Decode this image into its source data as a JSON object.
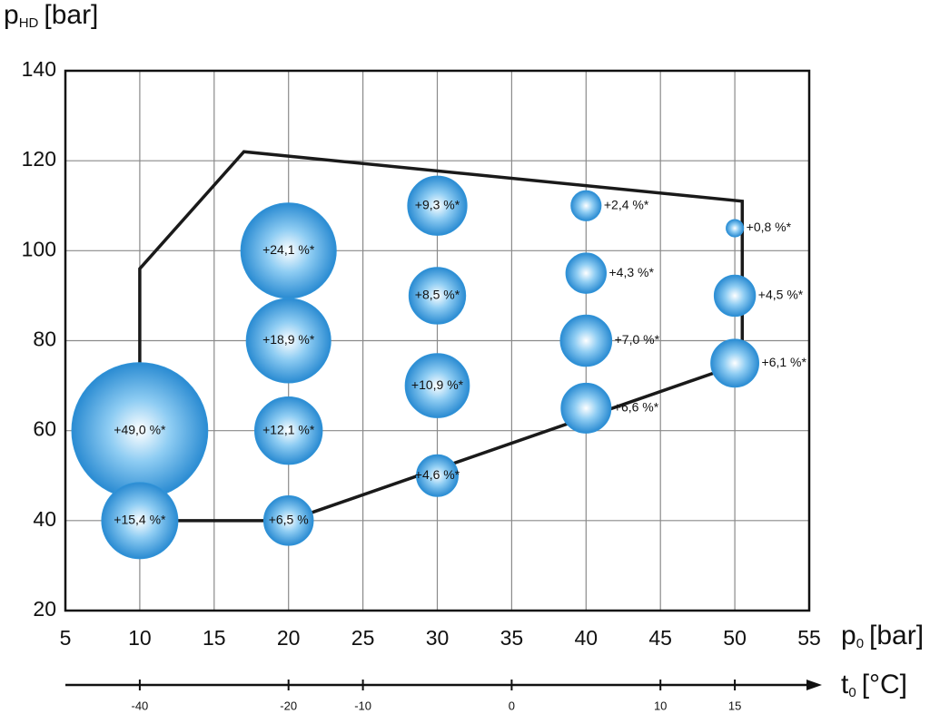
{
  "chart_data": {
    "type": "scatter",
    "ylabel": {
      "main": "p",
      "sub": "HD",
      "unit": "[bar]"
    },
    "xlabel": {
      "main": "p",
      "sub": "0",
      "unit": "[bar]"
    },
    "xlim": [
      5,
      55
    ],
    "xticks": [
      5,
      10,
      15,
      20,
      25,
      30,
      35,
      40,
      45,
      50,
      55
    ],
    "ylim": [
      20,
      140
    ],
    "yticks": [
      20,
      40,
      60,
      80,
      100,
      120,
      140
    ],
    "grid": true,
    "color": "#2f93d8",
    "x": [
      10,
      10,
      20,
      20,
      20,
      20,
      30,
      30,
      30,
      30,
      40,
      40,
      40,
      40,
      50,
      50,
      50
    ],
    "y": [
      60,
      40,
      100,
      80,
      60,
      40,
      110,
      90,
      70,
      50,
      110,
      95,
      80,
      65,
      105,
      90,
      75
    ],
    "sizes": [
      49.0,
      15.4,
      24.1,
      18.9,
      12.1,
      6.5,
      9.3,
      8.5,
      10.9,
      4.6,
      2.4,
      4.3,
      7.0,
      6.6,
      0.8,
      4.5,
      6.1
    ],
    "value_labels": [
      "+49,0 %*",
      "+15,4 %*",
      "+24,1 %*",
      "+18,9 %*",
      "+12,1 %*",
      "+6,5 %",
      "+9,3 %*",
      "+8,5 %*",
      "+10,9 %*",
      "+4,6 %*",
      "+2,4 %*",
      "+4,3 %*",
      "+7,0 %*",
      "+6,6 %*",
      "+0,8 %*",
      "+4,5 %*",
      "+6,1 %*"
    ],
    "envelope": {
      "x": [
        10,
        10,
        17,
        50.5,
        50.5,
        20,
        10
      ],
      "y": [
        40,
        96,
        122,
        111,
        75,
        40,
        40
      ]
    },
    "t0_axis": {
      "label": {
        "main": "t",
        "sub": "0",
        "unit": "[°C]"
      },
      "ticks": [
        -40,
        -20,
        -10,
        0,
        10,
        15
      ],
      "at_x": [
        10,
        20,
        25,
        35,
        45,
        50
      ]
    }
  }
}
